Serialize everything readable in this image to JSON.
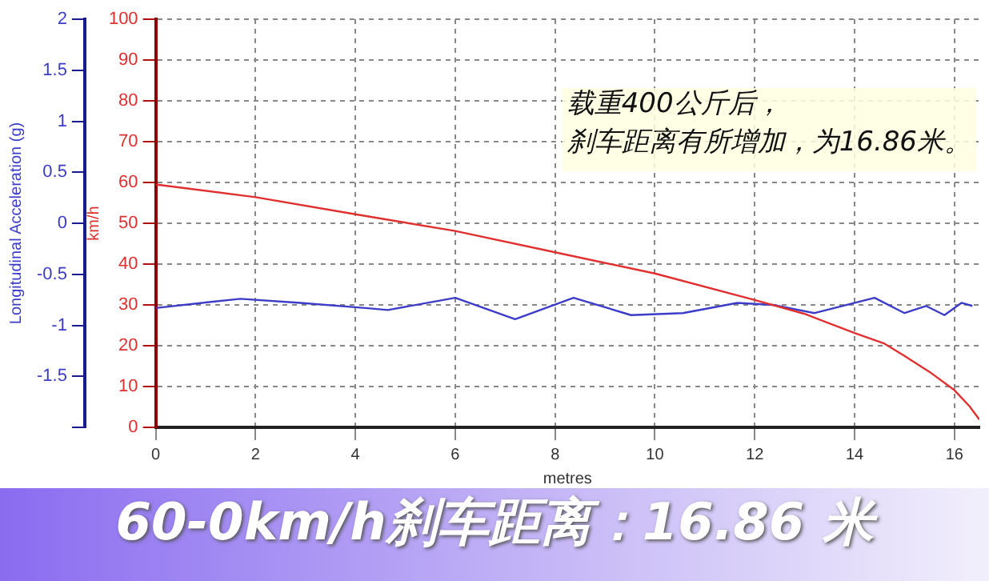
{
  "chart_data": {
    "type": "line",
    "title": "60-0km/h刹车距离：16.86 米",
    "xlabel": "metres",
    "ylabel": "km/h",
    "y2label": "Longitudinal Acceleration (g)",
    "annotations": [
      "载重400公斤后，",
      "刹车距离有所增加，为16.86米。"
    ],
    "xlim": [
      0,
      16.5
    ],
    "xticks": [
      0,
      2,
      4,
      6,
      8,
      10,
      12,
      14,
      16
    ],
    "ylim": [
      0,
      100
    ],
    "yticks": [
      0,
      10,
      20,
      30,
      40,
      50,
      60,
      70,
      80,
      90,
      100
    ],
    "y2lim": [
      -2,
      2
    ],
    "y2ticks": [
      {
        "value": -2,
        "label": null
      },
      -1.5,
      -1,
      -0.5,
      0,
      0.5,
      1,
      1.5,
      2
    ],
    "grid": true,
    "legend": false,
    "marker": "none",
    "line_style": "solid",
    "series": [
      {
        "color": "#e03030",
        "x": [
          0,
          2,
          4,
          6,
          8,
          10,
          12,
          13,
          14,
          14.6,
          15,
          15.5,
          16,
          16.3,
          16.5
        ],
        "values": [
          59.5,
          56.4,
          52.2,
          48.1,
          42.9,
          37.7,
          31.2,
          27.8,
          23.1,
          20.5,
          17.5,
          13.6,
          9.1,
          5.2,
          1.9
        ]
      },
      {
        "color": "#3c3cc8",
        "axis": "y2",
        "x": [
          0,
          0.93,
          1.7,
          2.9,
          4.2,
          4.65,
          6.0,
          7.2,
          8.37,
          9.52,
          10.56,
          11.65,
          12.36,
          13.2,
          14.4,
          15.0,
          15.43,
          15.8,
          16.14,
          16.36
        ],
        "values": [
          -0.83,
          -0.78,
          -0.74,
          -0.78,
          -0.83,
          -0.85,
          -0.73,
          -0.94,
          -0.73,
          -0.9,
          -0.88,
          -0.78,
          -0.8,
          -0.88,
          -0.73,
          -0.88,
          -0.81,
          -0.9,
          -0.78,
          -0.81
        ]
      }
    ]
  }
}
